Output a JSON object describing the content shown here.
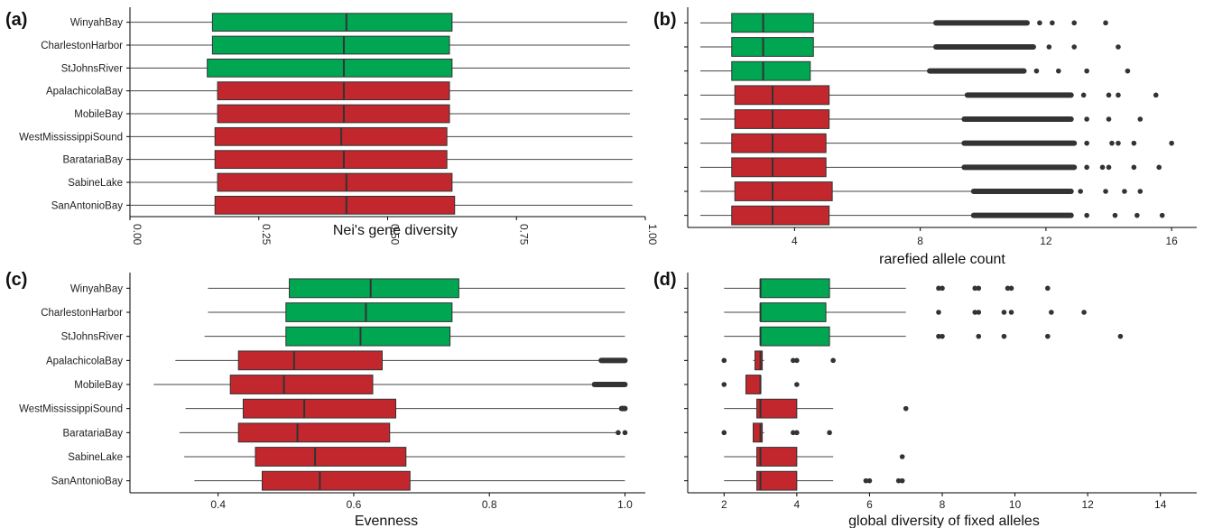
{
  "colors": {
    "northern": "#00a651",
    "gulf": "#c1272d",
    "whisker": "#444444",
    "outlier": "#333333",
    "axis": "#000000"
  },
  "chart_data": [
    {
      "panel": "(a)",
      "type": "boxplot",
      "orientation": "horizontal",
      "xlabel": "Nei's gene diversity",
      "ylabel": "",
      "xlim": [
        0,
        1
      ],
      "xticks": [
        0,
        0.25,
        0.5,
        0.75,
        1
      ],
      "xtick_labels": [
        "0.00",
        "0.25",
        "0.50",
        "0.75",
        "1.00"
      ],
      "xtick_rotation": 90,
      "show_y_labels": true,
      "categories": [
        "WinyahBay",
        "CharlestonHarbor",
        "StJohnsRiver",
        "ApalachicolaBay",
        "MobileBay",
        "WestMississippiSound",
        "BaratariaBay",
        "SabineLake",
        "SanAntonioBay"
      ],
      "groups": [
        "northern",
        "northern",
        "northern",
        "gulf",
        "gulf",
        "gulf",
        "gulf",
        "gulf",
        "gulf"
      ],
      "boxes": [
        {
          "min": 0.0,
          "q1": 0.16,
          "median": 0.42,
          "q3": 0.625,
          "max": 0.965,
          "outliers": []
        },
        {
          "min": 0.0,
          "q1": 0.16,
          "median": 0.415,
          "q3": 0.62,
          "max": 0.97,
          "outliers": []
        },
        {
          "min": 0.0,
          "q1": 0.15,
          "median": 0.415,
          "q3": 0.625,
          "max": 0.97,
          "outliers": []
        },
        {
          "min": 0.0,
          "q1": 0.17,
          "median": 0.415,
          "q3": 0.62,
          "max": 0.975,
          "outliers": []
        },
        {
          "min": 0.0,
          "q1": 0.17,
          "median": 0.415,
          "q3": 0.62,
          "max": 0.97,
          "outliers": []
        },
        {
          "min": 0.0,
          "q1": 0.165,
          "median": 0.41,
          "q3": 0.615,
          "max": 0.975,
          "outliers": []
        },
        {
          "min": 0.0,
          "q1": 0.165,
          "median": 0.415,
          "q3": 0.615,
          "max": 0.975,
          "outliers": []
        },
        {
          "min": 0.0,
          "q1": 0.17,
          "median": 0.42,
          "q3": 0.625,
          "max": 0.975,
          "outliers": []
        },
        {
          "min": 0.0,
          "q1": 0.165,
          "median": 0.42,
          "q3": 0.63,
          "max": 0.975,
          "outliers": []
        }
      ]
    },
    {
      "panel": "(b)",
      "type": "boxplot",
      "orientation": "horizontal",
      "xlabel": "rarefied allele count",
      "ylabel": "",
      "xlim": [
        0.6,
        16.8
      ],
      "xticks": [
        4,
        8,
        12,
        16
      ],
      "xtick_labels": [
        "4",
        "8",
        "12",
        "16"
      ],
      "xtick_rotation": 0,
      "show_y_labels": false,
      "categories": [
        "WinyahBay",
        "CharlestonHarbor",
        "StJohnsRiver",
        "ApalachicolaBay",
        "MobileBay",
        "WestMississippiSound",
        "BaratariaBay",
        "SabineLake",
        "SanAntonioBay"
      ],
      "groups": [
        "northern",
        "northern",
        "northern",
        "gulf",
        "gulf",
        "gulf",
        "gulf",
        "gulf",
        "gulf"
      ],
      "boxes": [
        {
          "min": 1.0,
          "q1": 2.0,
          "median": 3.0,
          "q3": 4.6,
          "max": 8.5,
          "outlier_range": [
            8.5,
            11.4
          ],
          "outliers": [
            11.8,
            12.2,
            12.9,
            13.9
          ]
        },
        {
          "min": 1.0,
          "q1": 2.0,
          "median": 3.0,
          "q3": 4.6,
          "max": 8.5,
          "outlier_range": [
            8.5,
            11.6
          ],
          "outliers": [
            12.1,
            12.9,
            14.3
          ]
        },
        {
          "min": 1.0,
          "q1": 2.0,
          "median": 3.0,
          "q3": 4.5,
          "max": 8.3,
          "outlier_range": [
            8.3,
            11.3
          ],
          "outliers": [
            11.7,
            12.4,
            13.3,
            14.6
          ]
        },
        {
          "min": 1.0,
          "q1": 2.1,
          "median": 3.3,
          "q3": 5.1,
          "max": 9.5,
          "outlier_range": [
            9.5,
            12.8
          ],
          "outliers": [
            13.2,
            14.0,
            14.3,
            15.5
          ]
        },
        {
          "min": 1.0,
          "q1": 2.1,
          "median": 3.3,
          "q3": 5.1,
          "max": 9.4,
          "outlier_range": [
            9.4,
            12.8
          ],
          "outliers": [
            13.3,
            14.0,
            15.0
          ]
        },
        {
          "min": 1.0,
          "q1": 2.0,
          "median": 3.3,
          "q3": 5.0,
          "max": 9.4,
          "outlier_range": [
            9.4,
            12.9
          ],
          "outliers": [
            13.3,
            14.1,
            14.3,
            14.8,
            16.0
          ]
        },
        {
          "min": 1.0,
          "q1": 2.0,
          "median": 3.3,
          "q3": 5.0,
          "max": 9.4,
          "outlier_range": [
            9.4,
            12.9
          ],
          "outliers": [
            13.3,
            13.8,
            14.0,
            14.8,
            15.6
          ]
        },
        {
          "min": 1.0,
          "q1": 2.1,
          "median": 3.3,
          "q3": 5.2,
          "max": 9.7,
          "outlier_range": [
            9.7,
            12.8
          ],
          "outliers": [
            13.1,
            13.9,
            14.5,
            15.0
          ]
        },
        {
          "min": 1.0,
          "q1": 2.0,
          "median": 3.3,
          "q3": 5.1,
          "max": 9.7,
          "outlier_range": [
            9.7,
            12.8
          ],
          "outliers": [
            13.3,
            14.2,
            14.9,
            15.7
          ]
        }
      ]
    },
    {
      "panel": "(c)",
      "type": "boxplot",
      "orientation": "horizontal",
      "xlabel": "Evenness",
      "ylabel": "",
      "xlim": [
        0.27,
        1.03
      ],
      "xticks": [
        0.4,
        0.6,
        0.8,
        1.0
      ],
      "xtick_labels": [
        "0.4",
        "0.6",
        "0.8",
        "1.0"
      ],
      "xtick_rotation": 0,
      "show_y_labels": true,
      "categories": [
        "WinyahBay",
        "CharlestonHarbor",
        "StJohnsRiver",
        "ApalachicolaBay",
        "MobileBay",
        "WestMississippiSound",
        "BaratariaBay",
        "SabineLake",
        "SanAntonioBay"
      ],
      "groups": [
        "northern",
        "northern",
        "northern",
        "gulf",
        "gulf",
        "gulf",
        "gulf",
        "gulf",
        "gulf"
      ],
      "boxes": [
        {
          "min": 0.385,
          "q1": 0.505,
          "median": 0.625,
          "q3": 0.755,
          "max": 1.0,
          "outliers": []
        },
        {
          "min": 0.385,
          "q1": 0.5,
          "median": 0.618,
          "q3": 0.745,
          "max": 1.0,
          "outliers": []
        },
        {
          "min": 0.38,
          "q1": 0.5,
          "median": 0.61,
          "q3": 0.742,
          "max": 1.0,
          "outliers": []
        },
        {
          "min": 0.337,
          "q1": 0.43,
          "median": 0.512,
          "q3": 0.642,
          "max": 0.965,
          "outlier_range": [
            0.965,
            1.0
          ],
          "outliers": []
        },
        {
          "min": 0.305,
          "q1": 0.418,
          "median": 0.497,
          "q3": 0.628,
          "max": 0.955,
          "outlier_range": [
            0.955,
            1.0
          ],
          "outliers": []
        },
        {
          "min": 0.352,
          "q1": 0.437,
          "median": 0.527,
          "q3": 0.662,
          "max": 0.995,
          "outlier_range": [
            0.995,
            1.0
          ],
          "outliers": []
        },
        {
          "min": 0.343,
          "q1": 0.43,
          "median": 0.517,
          "q3": 0.653,
          "max": 0.988,
          "outliers": [
            0.99,
            1.0
          ]
        },
        {
          "min": 0.35,
          "q1": 0.455,
          "median": 0.543,
          "q3": 0.677,
          "max": 1.0,
          "outliers": []
        },
        {
          "min": 0.365,
          "q1": 0.465,
          "median": 0.55,
          "q3": 0.683,
          "max": 1.0,
          "outliers": []
        }
      ]
    },
    {
      "panel": "(d)",
      "type": "boxplot",
      "orientation": "horizontal",
      "xlabel": "global diversity of fixed alleles",
      "ylabel": "",
      "xlim": [
        1.0,
        15.0
      ],
      "xticks": [
        2,
        4,
        6,
        8,
        10,
        12,
        14
      ],
      "xtick_labels": [
        "2",
        "4",
        "6",
        "8",
        "10",
        "12",
        "14"
      ],
      "xtick_rotation": 0,
      "show_y_labels": false,
      "categories": [
        "WinyahBay",
        "CharlestonHarbor",
        "StJohnsRiver",
        "ApalachicolaBay",
        "MobileBay",
        "WestMississippiSound",
        "BaratariaBay",
        "SabineLake",
        "SanAntonioBay"
      ],
      "groups": [
        "northern",
        "northern",
        "northern",
        "gulf",
        "gulf",
        "gulf",
        "gulf",
        "gulf",
        "gulf"
      ],
      "boxes": [
        {
          "min": 2.0,
          "q1": 3.0,
          "median": 3.0,
          "q3": 4.9,
          "max": 7.0,
          "outliers": [
            7.9,
            8.0,
            8.9,
            9.0,
            9.8,
            9.9,
            10.9
          ]
        },
        {
          "min": 2.0,
          "q1": 3.0,
          "median": 3.0,
          "q3": 4.8,
          "max": 7.0,
          "outliers": [
            7.9,
            8.9,
            9.0,
            9.7,
            9.9,
            11.0,
            11.9
          ]
        },
        {
          "min": 2.0,
          "q1": 3.0,
          "median": 3.0,
          "q3": 4.9,
          "max": 7.0,
          "outliers": [
            7.9,
            8.0,
            9.0,
            9.7,
            10.9,
            12.9
          ]
        },
        {
          "min": 2.8,
          "q1": 2.85,
          "median": 3.0,
          "q3": 3.05,
          "max": 3.1,
          "outliers": [
            2.0,
            3.9,
            4.0,
            5.0
          ]
        },
        {
          "min": 2.6,
          "q1": 2.6,
          "median": 3.0,
          "q3": 3.0,
          "max": 3.0,
          "outliers": [
            2.0,
            4.0
          ]
        },
        {
          "min": 2.0,
          "q1": 2.9,
          "median": 3.0,
          "q3": 4.0,
          "max": 5.0,
          "outliers": [
            7.0
          ]
        },
        {
          "min": 2.8,
          "q1": 2.8,
          "median": 3.0,
          "q3": 3.05,
          "max": 3.1,
          "outliers": [
            2.0,
            3.9,
            4.0,
            4.9
          ]
        },
        {
          "min": 2.0,
          "q1": 2.9,
          "median": 3.0,
          "q3": 4.0,
          "max": 5.0,
          "outliers": [
            6.9
          ]
        },
        {
          "min": 2.0,
          "q1": 2.9,
          "median": 3.0,
          "q3": 4.0,
          "max": 5.0,
          "outliers": [
            5.9,
            6.0,
            6.8,
            6.9
          ]
        }
      ]
    }
  ]
}
